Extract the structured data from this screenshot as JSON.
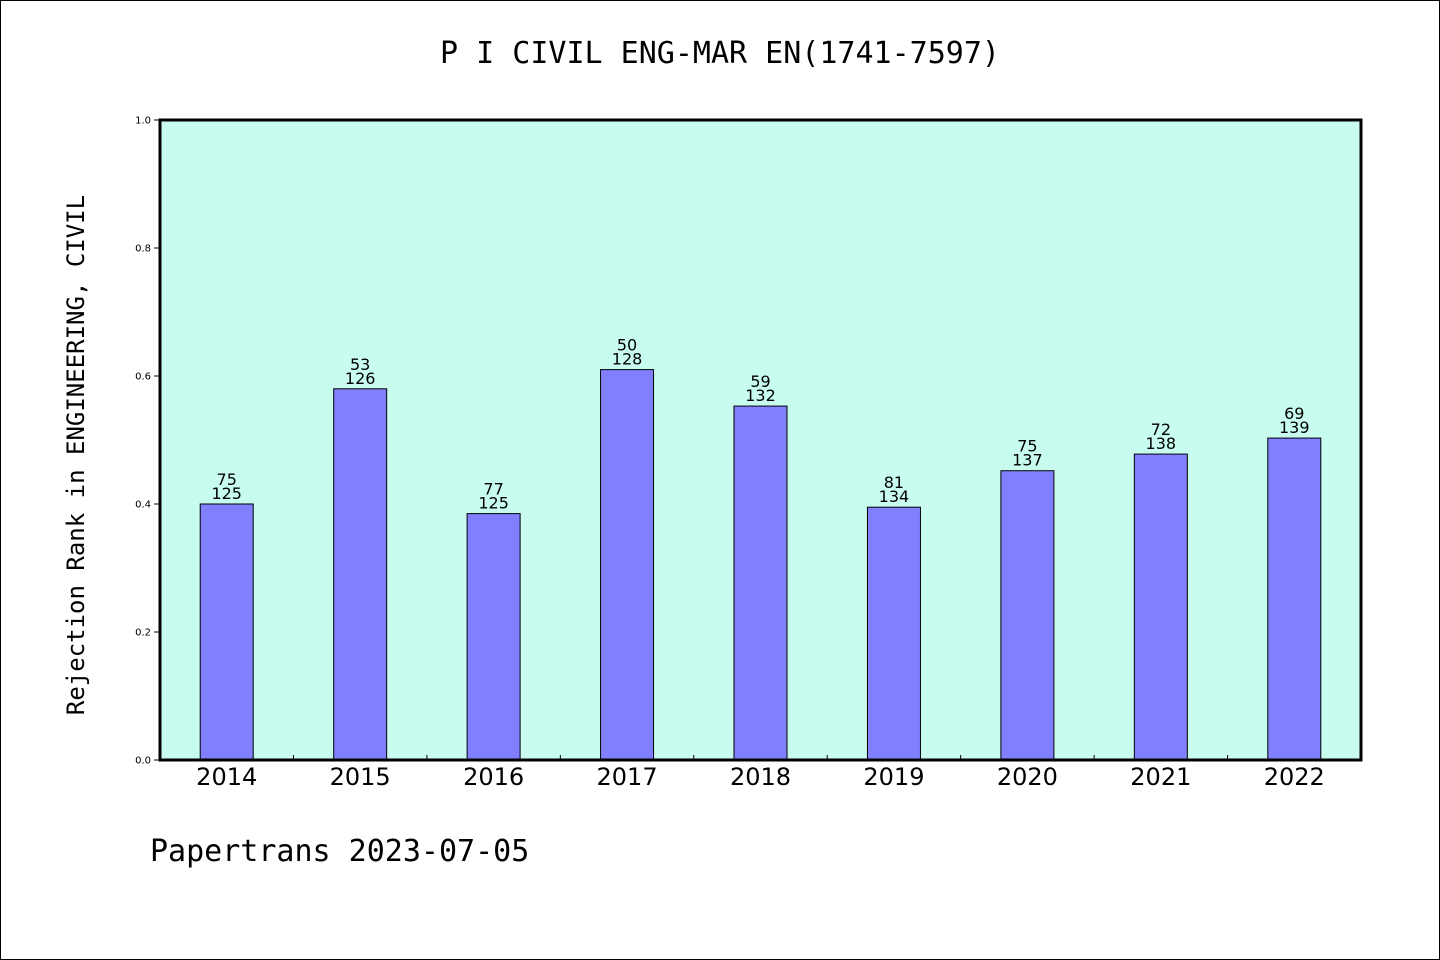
{
  "chart_data": {
    "type": "bar",
    "title": "P I CIVIL ENG-MAR EN(1741-7597)",
    "ylabel": "Rejection Rank in ENGINEERING, CIVIL",
    "xlabel": "",
    "ylim": [
      0.0,
      1.0
    ],
    "yticks": [
      "0.0",
      "0.2",
      "0.4",
      "0.6",
      "0.8",
      "1.0"
    ],
    "categories": [
      "2014",
      "2015",
      "2016",
      "2017",
      "2018",
      "2019",
      "2020",
      "2021",
      "2022"
    ],
    "values": [
      0.4,
      0.58,
      0.385,
      0.61,
      0.553,
      0.395,
      0.452,
      0.478,
      0.503
    ],
    "labels_top": [
      "75",
      "53",
      "77",
      "50",
      "59",
      "81",
      "75",
      "72",
      "69"
    ],
    "labels_bottom": [
      "125",
      "126",
      "125",
      "128",
      "132",
      "134",
      "137",
      "138",
      "139"
    ],
    "grid": false,
    "colors": {
      "plot_background": "#c8fcee",
      "bar": "#8080ff",
      "bar_edge": "#000000"
    }
  },
  "footer": "Papertrans 2023-07-05"
}
